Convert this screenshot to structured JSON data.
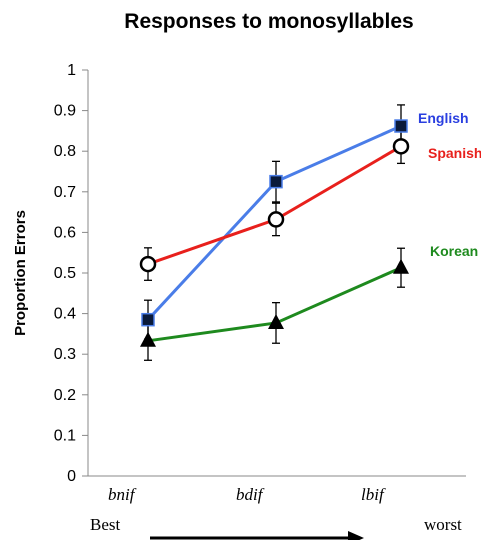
{
  "chart_data": {
    "type": "line",
    "title": "Responses to monosyllables",
    "ylabel": "Proportion Errors",
    "xlabel": "",
    "ylim": [
      0,
      1
    ],
    "yticks": [
      "0",
      "0.1",
      "0.2",
      "0.3",
      "0.4",
      "0.5",
      "0.6",
      "0.7",
      "0.8",
      "0.9",
      "1"
    ],
    "categories": [
      "bnif",
      "bdif",
      "lbif"
    ],
    "scale_left_label": "Best",
    "scale_right_label": "worst",
    "grid": false,
    "series": [
      {
        "name": "English",
        "color": "#4a7de8",
        "marker": "square",
        "values": [
          0.385,
          0.725,
          0.862
        ],
        "errors": [
          0.048,
          0.05,
          0.052
        ]
      },
      {
        "name": "Spanish",
        "color": "#e8201c",
        "marker": "circle",
        "values": [
          0.522,
          0.632,
          0.812
        ],
        "errors": [
          0.04,
          0.04,
          0.042
        ]
      },
      {
        "name": "Korean",
        "color": "#1e8a1e",
        "marker": "triangle",
        "values": [
          0.333,
          0.377,
          0.513
        ],
        "errors": [
          0.048,
          0.05,
          0.048
        ]
      }
    ]
  }
}
